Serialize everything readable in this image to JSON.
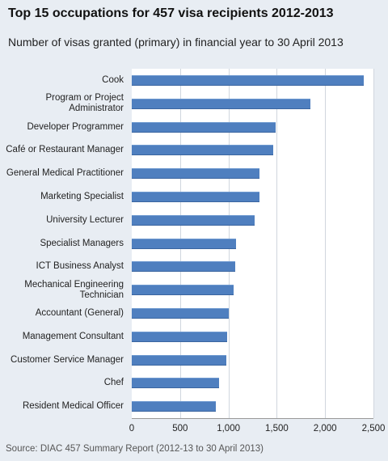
{
  "chart_data": {
    "type": "bar",
    "orientation": "horizontal",
    "title": "Top 15 occupations for 457 visa recipients 2012-2013",
    "subtitle": "Number  of visas granted (primary)  in financial year to 30 April 2013",
    "categories": [
      "Cook",
      "Program or Project Administrator",
      "Developer Programmer",
      "Café or Restaurant Manager",
      "General Medical Practitioner",
      "Marketing Specialist",
      "University Lecturer",
      "Specialist Managers",
      "ICT Business Analyst",
      "Mechanical Engineering Technician",
      "Accountant (General)",
      "Management Consultant",
      "Customer Service Manager",
      "Chef",
      "Resident Medical Officer"
    ],
    "values": [
      2400,
      1850,
      1490,
      1460,
      1320,
      1320,
      1270,
      1080,
      1070,
      1050,
      1000,
      990,
      975,
      900,
      870
    ],
    "xlim": [
      0,
      2500
    ],
    "xticks": [
      "0",
      "500",
      "1,000",
      "1,500",
      "2,000",
      "2,500"
    ],
    "xtick_values": [
      0,
      500,
      1000,
      1500,
      2000,
      2500
    ],
    "grid": true,
    "bar_color": "#4f7fbf",
    "source": "Source: DIAC 457 Summary Report (2012-13 to 30 April 2013)"
  }
}
